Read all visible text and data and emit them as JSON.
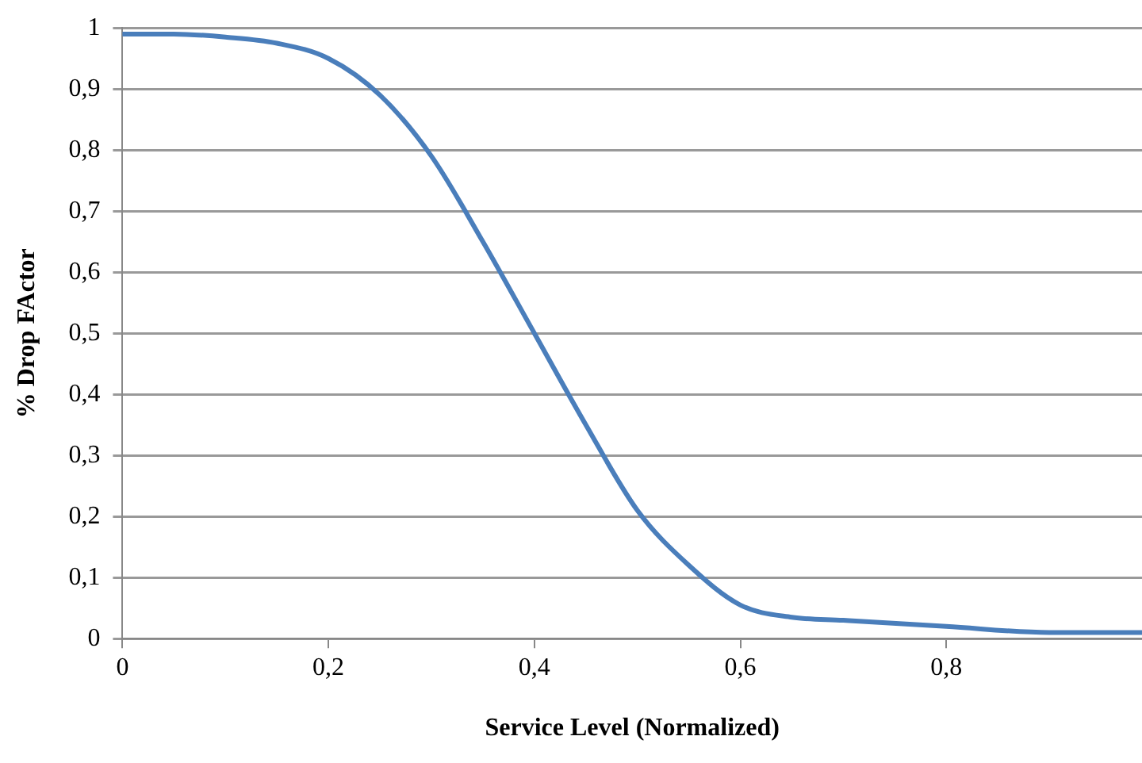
{
  "chart_data": {
    "type": "line",
    "xlabel": "Service Level (Normalized)",
    "ylabel": "% Drop FActor",
    "x": [
      0,
      0.05,
      0.1,
      0.15,
      0.2,
      0.25,
      0.3,
      0.35,
      0.4,
      0.45,
      0.5,
      0.55,
      0.6,
      0.65,
      0.7,
      0.8,
      0.9,
      0.99
    ],
    "series": [
      {
        "color": "#4a7ebb",
        "values": [
          0.99,
          0.99,
          0.985,
          0.975,
          0.95,
          0.89,
          0.79,
          0.65,
          0.5,
          0.35,
          0.21,
          0.12,
          0.055,
          0.035,
          0.03,
          0.02,
          0.01,
          0.01
        ]
      }
    ],
    "xlim": [
      0,
      0.99
    ],
    "xticks": [
      0,
      {
        "value": 0.2,
        "label": "0,2"
      },
      {
        "value": 0.4,
        "label": "0,4"
      },
      {
        "value": 0.6,
        "label": "0,6"
      },
      {
        "value": 0.8,
        "label": "0,8"
      }
    ],
    "ylim": [
      0,
      1
    ],
    "yticks": [
      0,
      {
        "value": 0.1,
        "label": "0,1"
      },
      {
        "value": 0.2,
        "label": "0,2"
      },
      {
        "value": 0.3,
        "label": "0,3"
      },
      {
        "value": 0.4,
        "label": "0,4"
      },
      {
        "value": 0.5,
        "label": "0,5"
      },
      {
        "value": 0.6,
        "label": "0,6"
      },
      {
        "value": 0.7,
        "label": "0,7"
      },
      {
        "value": 0.8,
        "label": "0,8"
      },
      {
        "value": 0.9,
        "label": "0,9"
      },
      1
    ],
    "grid": "y",
    "legend": false,
    "marker": "none",
    "line_style": "solid"
  }
}
